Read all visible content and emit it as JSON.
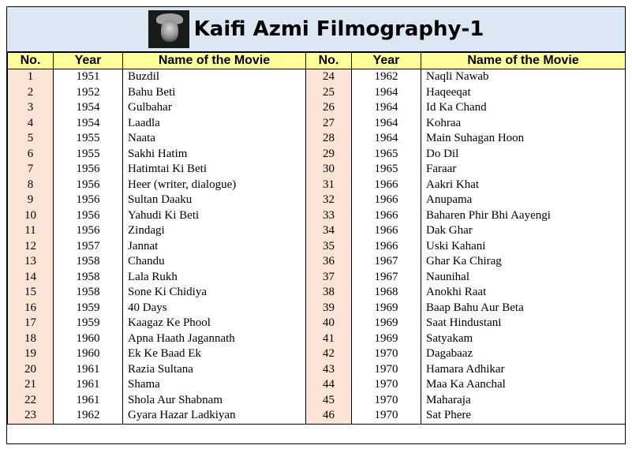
{
  "title": "Kaifi Azmi Filmography-1",
  "header": {
    "no": "No.",
    "year": "Year",
    "name": "Name of the Movie"
  },
  "left": [
    {
      "no": "1",
      "year": "1951",
      "name": "Buzdil"
    },
    {
      "no": "2",
      "year": "1952",
      "name": "Bahu Beti"
    },
    {
      "no": "3",
      "year": "1954",
      "name": "Gulbahar"
    },
    {
      "no": "4",
      "year": "1954",
      "name": "Laadla"
    },
    {
      "no": "5",
      "year": "1955",
      "name": "Naata"
    },
    {
      "no": "6",
      "year": "1955",
      "name": "Sakhi Hatim"
    },
    {
      "no": "7",
      "year": "1956",
      "name": "Hatimtai Ki Beti"
    },
    {
      "no": "8",
      "year": "1956",
      "name": "Heer (writer, dialogue)"
    },
    {
      "no": "9",
      "year": "1956",
      "name": "Sultan Daaku"
    },
    {
      "no": "10",
      "year": "1956",
      "name": "Yahudi Ki Beti"
    },
    {
      "no": "11",
      "year": "1956",
      "name": "Zindagi"
    },
    {
      "no": "12",
      "year": "1957",
      "name": "Jannat"
    },
    {
      "no": "13",
      "year": "1958",
      "name": "Chandu"
    },
    {
      "no": "14",
      "year": "1958",
      "name": "Lala Rukh"
    },
    {
      "no": "15",
      "year": "1958",
      "name": "Sone Ki Chidiya"
    },
    {
      "no": "16",
      "year": "1959",
      "name": "40 Days"
    },
    {
      "no": "17",
      "year": "1959",
      "name": "Kaagaz Ke Phool"
    },
    {
      "no": "18",
      "year": "1960",
      "name": "Apna Haath Jagannath"
    },
    {
      "no": "19",
      "year": "1960",
      "name": "Ek Ke Baad Ek"
    },
    {
      "no": "20",
      "year": "1961",
      "name": "Razia Sultana"
    },
    {
      "no": "21",
      "year": "1961",
      "name": "Shama"
    },
    {
      "no": "22",
      "year": "1961",
      "name": "Shola Aur Shabnam"
    },
    {
      "no": "23",
      "year": "1962",
      "name": "Gyara Hazar Ladkiyan"
    }
  ],
  "right": [
    {
      "no": "24",
      "year": "1962",
      "name": "Naqli Nawab"
    },
    {
      "no": "25",
      "year": "1964",
      "name": "Haqeeqat"
    },
    {
      "no": "26",
      "year": "1964",
      "name": "Id Ka Chand"
    },
    {
      "no": "27",
      "year": "1964",
      "name": "Kohraa"
    },
    {
      "no": "28",
      "year": "1964",
      "name": "Main Suhagan Hoon"
    },
    {
      "no": "29",
      "year": "1965",
      "name": "Do Dil"
    },
    {
      "no": "30",
      "year": "1965",
      "name": "Faraar"
    },
    {
      "no": "31",
      "year": "1966",
      "name": "Aakri Khat"
    },
    {
      "no": "32",
      "year": "1966",
      "name": "Anupama"
    },
    {
      "no": "33",
      "year": "1966",
      "name": "Baharen Phir Bhi Aayengi"
    },
    {
      "no": "34",
      "year": "1966",
      "name": "Dak Ghar"
    },
    {
      "no": "35",
      "year": "1966",
      "name": "Uski Kahani"
    },
    {
      "no": "36",
      "year": "1967",
      "name": "Ghar Ka Chirag"
    },
    {
      "no": "37",
      "year": "1967",
      "name": "Naunihal"
    },
    {
      "no": "38",
      "year": "1968",
      "name": "Anokhi Raat"
    },
    {
      "no": "39",
      "year": "1969",
      "name": "Baap Bahu Aur Beta"
    },
    {
      "no": "40",
      "year": "1969",
      "name": "Saat Hindustani"
    },
    {
      "no": "41",
      "year": "1969",
      "name": "Satyakam"
    },
    {
      "no": "42",
      "year": "1970",
      "name": "Dagabaaz"
    },
    {
      "no": "43",
      "year": "1970",
      "name": "Hamara Adhikar"
    },
    {
      "no": "44",
      "year": "1970",
      "name": "Maa Ka Aanchal"
    },
    {
      "no": "45",
      "year": "1970",
      "name": "Maharaja"
    },
    {
      "no": "46",
      "year": "1970",
      "name": "Sat Phere"
    }
  ],
  "colors": {
    "title_bg": "#dbe8f3",
    "header_bg": "#ffff99",
    "no_bg": "#fbe3d5"
  }
}
